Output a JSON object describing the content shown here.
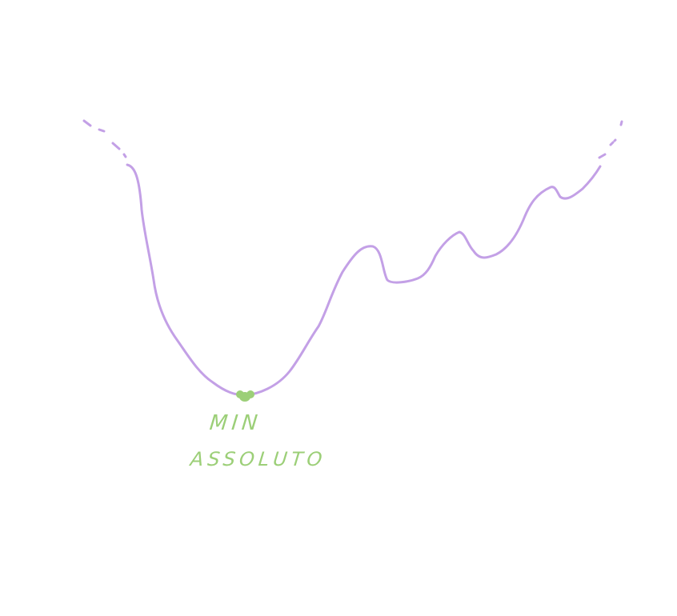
{
  "colors": {
    "curve": "#c3a0e6",
    "highlight": "#9ccf78",
    "background": "#ffffff"
  },
  "annotation": {
    "line1": "MIN",
    "line2": "ASSOLUTO"
  }
}
